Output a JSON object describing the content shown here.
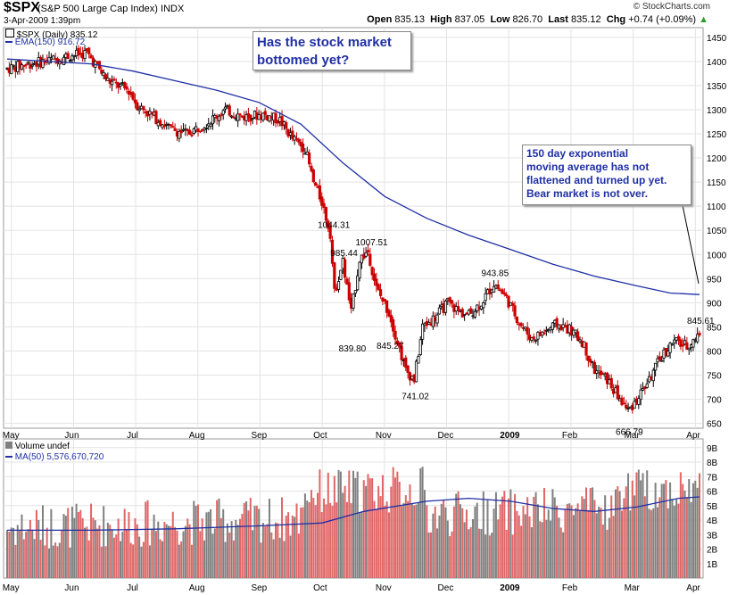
{
  "header": {
    "symbol": "$SPX",
    "description": "(S&P 500 Large Cap Index)",
    "exchange": "INDX",
    "date_time": "3-Apr-2009 1:39pm",
    "open_label": "Open",
    "open": "835.13",
    "high_label": "High",
    "high": "837.05",
    "low_label": "Low",
    "low": "826.70",
    "last_label": "Last",
    "last": "835.12",
    "chg_label": "Chg",
    "chg": "+0.74 (+0.09%)",
    "copyright": "© StockCharts.com"
  },
  "legend": {
    "price": "$SPX (Daily) 835.12",
    "ema": "EMA(150) 916.72",
    "volume": "Volume undef",
    "ma": "MA(50) 5,576,670,720"
  },
  "annotations": {
    "note1_line1": "Has the stock market",
    "note1_line2": "bottomed yet?",
    "note2_line1": "150 day exponential",
    "note2_line2": "moving average has not",
    "note2_line3": "flattened and turned up yet.",
    "note2_line4": "Bear market is not over."
  },
  "colors": {
    "up": "#000000",
    "down": "#cc0000",
    "ema": "#1f2fa5",
    "vol_up": "#808080",
    "vol_down": "#e06666",
    "note_text": "#1f2fa5"
  },
  "chart_data": [
    {
      "type": "candlestick",
      "title": "$SPX (Daily) 835.12",
      "x_labels": [
        "May",
        "Jun",
        "Jul",
        "Aug",
        "Sep",
        "Oct",
        "Nov",
        "Dec",
        "2009",
        "Feb",
        "Mar",
        "Apr"
      ],
      "ylim": [
        640,
        1470
      ],
      "y_ticks": [
        650,
        700,
        750,
        800,
        850,
        900,
        950,
        1000,
        1050,
        1100,
        1150,
        1200,
        1250,
        1300,
        1350,
        1400,
        1450
      ],
      "grid": true,
      "price_path": [
        [
          0,
          1385
        ],
        [
          10,
          1395
        ],
        [
          20,
          1402
        ],
        [
          30,
          1412
        ],
        [
          38,
          1418
        ],
        [
          48,
          1360
        ],
        [
          58,
          1340
        ],
        [
          62,
          1310
        ],
        [
          70,
          1285
        ],
        [
          78,
          1260
        ],
        [
          86,
          1250
        ],
        [
          96,
          1275
        ],
        [
          104,
          1300
        ],
        [
          112,
          1285
        ],
        [
          122,
          1290
        ],
        [
          130,
          1278
        ],
        [
          136,
          1240
        ],
        [
          142,
          1220
        ],
        [
          146,
          1150
        ],
        [
          150,
          1110
        ],
        [
          154,
          1044
        ],
        [
          156,
          920
        ],
        [
          160,
          985
        ],
        [
          164,
          880
        ],
        [
          168,
          990
        ],
        [
          172,
          1007
        ],
        [
          176,
          930
        ],
        [
          182,
          880
        ],
        [
          186,
          820
        ],
        [
          190,
          760
        ],
        [
          194,
          741
        ],
        [
          198,
          850
        ],
        [
          204,
          870
        ],
        [
          210,
          900
        ],
        [
          216,
          880
        ],
        [
          220,
          875
        ],
        [
          226,
          900
        ],
        [
          232,
          940
        ],
        [
          238,
          910
        ],
        [
          244,
          860
        ],
        [
          250,
          825
        ],
        [
          256,
          840
        ],
        [
          262,
          855
        ],
        [
          268,
          845
        ],
        [
          274,
          820
        ],
        [
          280,
          760
        ],
        [
          286,
          740
        ],
        [
          292,
          700
        ],
        [
          296,
          676
        ],
        [
          300,
          700
        ],
        [
          306,
          740
        ],
        [
          312,
          790
        ],
        [
          318,
          820
        ],
        [
          324,
          810
        ],
        [
          330,
          835
        ]
      ],
      "ema_path": [
        [
          0,
          1405
        ],
        [
          20,
          1400
        ],
        [
          40,
          1395
        ],
        [
          60,
          1380
        ],
        [
          80,
          1360
        ],
        [
          100,
          1340
        ],
        [
          120,
          1315
        ],
        [
          140,
          1270
        ],
        [
          160,
          1190
        ],
        [
          180,
          1120
        ],
        [
          200,
          1075
        ],
        [
          220,
          1040
        ],
        [
          240,
          1010
        ],
        [
          260,
          980
        ],
        [
          280,
          955
        ],
        [
          300,
          935
        ],
        [
          316,
          920
        ],
        [
          330,
          917
        ]
      ],
      "day_count": 330,
      "labels": [
        {
          "text": "1044.31",
          "day": 154,
          "value": 1044.31
        },
        {
          "text": "985.44",
          "day": 160,
          "value": 985.44
        },
        {
          "text": "1007.51",
          "day": 172,
          "value": 1007.51
        },
        {
          "text": "839.80",
          "day": 164,
          "value": 839.8
        },
        {
          "text": "845.27",
          "day": 182,
          "value": 845.27
        },
        {
          "text": "741.02",
          "day": 194,
          "value": 741.02
        },
        {
          "text": "943.85",
          "day": 232,
          "value": 943.85
        },
        {
          "text": "666.79",
          "day": 296,
          "value": 666.79
        },
        {
          "text": "845.61",
          "day": 330,
          "value": 845.61
        }
      ]
    },
    {
      "type": "bar",
      "title": "Volume undef",
      "ylim": [
        0,
        9.6
      ],
      "y_ticks": [
        "1B",
        "2B",
        "3B",
        "4B",
        "5B",
        "6B",
        "7B",
        "8B",
        "9B"
      ],
      "y_tick_values": [
        1,
        2,
        3,
        4,
        5,
        6,
        7,
        8,
        9
      ],
      "ma_path": [
        [
          0,
          3.3
        ],
        [
          40,
          3.3
        ],
        [
          80,
          3.4
        ],
        [
          120,
          3.6
        ],
        [
          150,
          3.8
        ],
        [
          170,
          4.6
        ],
        [
          200,
          5.3
        ],
        [
          220,
          5.5
        ],
        [
          240,
          5.3
        ],
        [
          260,
          4.8
        ],
        [
          280,
          4.6
        ],
        [
          300,
          4.9
        ],
        [
          320,
          5.5
        ],
        [
          330,
          5.6
        ]
      ]
    }
  ]
}
